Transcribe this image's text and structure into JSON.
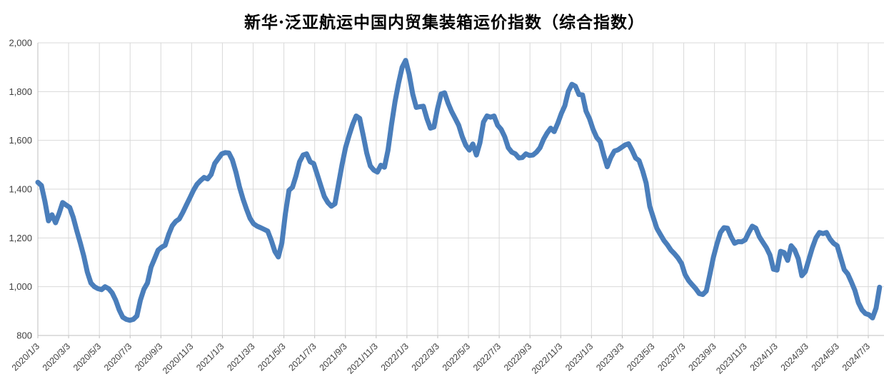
{
  "title": "新华·泛亚航运中国内贸集装箱运价指数（综合指数）",
  "colors": {
    "line": "#4a7ebb",
    "grid": "#d9d9d9",
    "axis": "#bfbfbf",
    "text": "#404040",
    "background": "#ffffff"
  },
  "chart_data": {
    "type": "line",
    "title": "新华·泛亚航运中国内贸集装箱运价指数（综合指数）",
    "series_name": "综合指数",
    "sampling": "weekly",
    "x_start_label": "2020/1/3",
    "x_end_label_approx": "2024/7/26",
    "x_tick_labels": [
      "2020/1/3",
      "2020/3/3",
      "2020/5/3",
      "2020/7/3",
      "2020/9/3",
      "2020/11/3",
      "2021/1/3",
      "2021/3/3",
      "2021/5/3",
      "2021/7/3",
      "2021/9/3",
      "2021/11/3",
      "2022/1/3",
      "2022/3/3",
      "2022/5/3",
      "2022/7/3",
      "2022/9/3",
      "2022/11/3",
      "2023/1/3",
      "2023/3/3",
      "2023/5/3",
      "2023/7/3",
      "2023/9/3",
      "2023/11/3",
      "2024/1/3",
      "2024/3/3",
      "2024/5/3",
      "2024/7/3"
    ],
    "days_per_tick_interval": 60.875,
    "days_per_point": 7,
    "ylim": [
      800,
      2000
    ],
    "y_tick_step": 200,
    "y_tick_labels": [
      "800",
      "1,000",
      "1,200",
      "1,400",
      "1,600",
      "1,800",
      "2,000"
    ],
    "grid": true,
    "legend": false,
    "values": [
      1428,
      1415,
      1350,
      1270,
      1295,
      1262,
      1300,
      1345,
      1335,
      1325,
      1285,
      1230,
      1180,
      1125,
      1060,
      1015,
      1000,
      992,
      988,
      1000,
      992,
      975,
      945,
      905,
      875,
      866,
      862,
      866,
      880,
      945,
      990,
      1015,
      1080,
      1115,
      1150,
      1162,
      1170,
      1215,
      1250,
      1268,
      1278,
      1305,
      1335,
      1365,
      1395,
      1420,
      1435,
      1448,
      1442,
      1460,
      1505,
      1525,
      1545,
      1550,
      1548,
      1520,
      1470,
      1410,
      1360,
      1318,
      1280,
      1258,
      1248,
      1242,
      1235,
      1228,
      1190,
      1145,
      1122,
      1180,
      1300,
      1395,
      1408,
      1455,
      1512,
      1540,
      1545,
      1512,
      1505,
      1460,
      1415,
      1370,
      1345,
      1330,
      1340,
      1420,
      1500,
      1570,
      1620,
      1665,
      1700,
      1690,
      1620,
      1548,
      1495,
      1478,
      1470,
      1498,
      1490,
      1560,
      1665,
      1760,
      1835,
      1900,
      1928,
      1870,
      1790,
      1735,
      1738,
      1740,
      1690,
      1650,
      1655,
      1730,
      1790,
      1795,
      1752,
      1718,
      1690,
      1662,
      1615,
      1580,
      1560,
      1585,
      1540,
      1590,
      1675,
      1700,
      1695,
      1700,
      1662,
      1645,
      1615,
      1570,
      1552,
      1545,
      1528,
      1530,
      1545,
      1538,
      1540,
      1552,
      1570,
      1605,
      1630,
      1650,
      1636,
      1670,
      1710,
      1742,
      1802,
      1830,
      1822,
      1788,
      1786,
      1720,
      1688,
      1645,
      1612,
      1595,
      1540,
      1492,
      1530,
      1556,
      1561,
      1571,
      1581,
      1586,
      1560,
      1528,
      1517,
      1475,
      1425,
      1330,
      1285,
      1240,
      1215,
      1190,
      1172,
      1150,
      1135,
      1118,
      1095,
      1050,
      1025,
      1008,
      992,
      972,
      968,
      982,
      1050,
      1120,
      1175,
      1222,
      1242,
      1240,
      1205,
      1178,
      1185,
      1184,
      1192,
      1222,
      1248,
      1240,
      1205,
      1182,
      1160,
      1130,
      1072,
      1068,
      1145,
      1140,
      1108,
      1168,
      1150,
      1115,
      1045,
      1062,
      1112,
      1160,
      1200,
      1222,
      1218,
      1222,
      1195,
      1178,
      1168,
      1120,
      1070,
      1052,
      1020,
      985,
      935,
      905,
      890,
      885,
      872,
      912,
      998
    ]
  }
}
